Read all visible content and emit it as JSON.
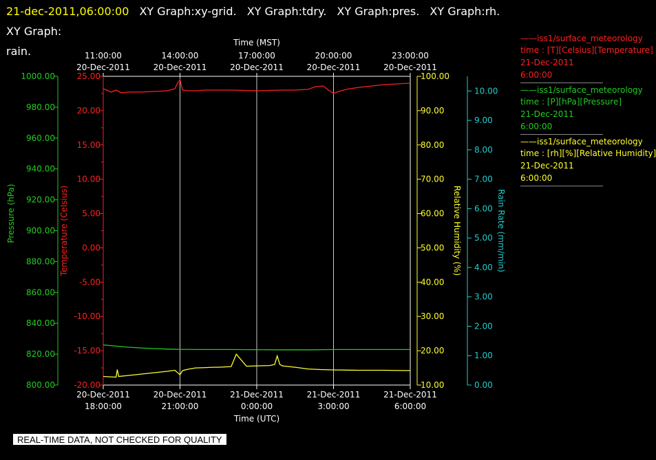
{
  "header": {
    "timestamp": "21-dec-2011,06:00:00",
    "graph_titles": [
      "XY Graph:xy-grid.",
      "XY Graph:tdry.",
      "XY Graph:pres.",
      "XY Graph:rh.",
      "XY Graph:",
      "rain."
    ]
  },
  "footer": {
    "text": "REAL-TIME DATA, NOT CHECKED FOR QUALITY"
  },
  "colors": {
    "background": "#000000",
    "grid": "#cccccc",
    "temperature": "#ff2020",
    "pressure": "#22cc22",
    "humidity": "#ffff30",
    "rain": "#22cccc"
  },
  "legend": [
    {
      "color": "#ff2020",
      "lines": [
        "——iss1/surface_meteorology",
        "time : [T][Celsius][Temperature]",
        "21-Dec-2011",
        "6:00:00"
      ]
    },
    {
      "color": "#22cc22",
      "lines": [
        "——iss1/surface_meteorology",
        "time : [P][hPa][Pressure]",
        "21-Dec-2011",
        "6:00:00"
      ]
    },
    {
      "color": "#ffff30",
      "lines": [
        "——iss1/surface_meteorology",
        "time : [rh][%][Relative Humidity]",
        "21-Dec-2011",
        "6:00:00"
      ]
    }
  ],
  "chart_data": {
    "type": "line",
    "x_range_hours_utc": [
      0,
      12
    ],
    "x_axis_bottom": {
      "label": "Time (UTC)",
      "ticks": [
        {
          "pos": 0,
          "date": "20-Dec-2011",
          "time": "18:00:00"
        },
        {
          "pos": 3,
          "date": "20-Dec-2011",
          "time": "21:00:00"
        },
        {
          "pos": 6,
          "date": "21-Dec-2011",
          "time": "0:00:00"
        },
        {
          "pos": 9,
          "date": "21-Dec-2011",
          "time": "3:00:00"
        },
        {
          "pos": 12,
          "date": "21-Dec-2011",
          "time": "6:00:00"
        }
      ]
    },
    "x_axis_top": {
      "label": "Time (MST)",
      "ticks": [
        {
          "pos": 0,
          "time": "11:00:00",
          "date": "20-Dec-2011"
        },
        {
          "pos": 3,
          "time": "14:00:00",
          "date": "20-Dec-2011"
        },
        {
          "pos": 6,
          "time": "17:00:00",
          "date": "20-Dec-2011"
        },
        {
          "pos": 9,
          "time": "20:00:00",
          "date": "20-Dec-2011"
        },
        {
          "pos": 12,
          "time": "23:00:00",
          "date": "20-Dec-2011"
        }
      ]
    },
    "grid": {
      "vertical": true,
      "horizontal": false
    },
    "y_axes": [
      {
        "id": "pressure",
        "label": "Pressure (hPa)",
        "range": [
          800,
          1000
        ],
        "ticks": [
          800,
          820,
          840,
          860,
          880,
          900,
          920,
          940,
          960,
          980,
          1000
        ],
        "color": "#22cc22"
      },
      {
        "id": "temperature",
        "label": "Temperature (Celsius)",
        "range": [
          -20,
          25
        ],
        "ticks": [
          -20,
          -15,
          -10,
          -5,
          0,
          5,
          10,
          15,
          20,
          25
        ],
        "color": "#ff2020"
      },
      {
        "id": "humidity",
        "label": "Relative Humidity (%)",
        "range": [
          10,
          100
        ],
        "ticks": [
          10,
          20,
          30,
          40,
          50,
          60,
          70,
          80,
          90,
          100
        ],
        "color": "#ffff30"
      },
      {
        "id": "rain",
        "label": "Rain Rate (mm/min)",
        "range": [
          0,
          10.5
        ],
        "ticks": [
          0,
          1,
          2,
          3,
          4,
          5,
          6,
          7,
          8,
          9,
          10
        ],
        "color": "#22cccc"
      }
    ],
    "series": [
      {
        "axis": "temperature",
        "color": "#ff2020",
        "x": [
          0,
          0.3,
          0.5,
          0.7,
          1.0,
          1.5,
          2.0,
          2.5,
          2.8,
          2.9,
          3.0,
          3.1,
          3.3,
          3.6,
          4.0,
          5.0,
          6.0,
          7.0,
          7.5,
          8.0,
          8.3,
          8.6,
          8.8,
          9.0,
          9.2,
          9.5,
          10.0,
          10.5,
          11.0,
          11.5,
          12.0
        ],
        "y": [
          23.2,
          22.7,
          23.0,
          22.6,
          22.7,
          22.7,
          22.8,
          22.9,
          23.2,
          24.0,
          24.5,
          23.0,
          22.9,
          22.9,
          23.0,
          23.0,
          22.9,
          23.0,
          23.0,
          23.1,
          23.5,
          23.6,
          23.0,
          22.5,
          22.8,
          23.1,
          23.4,
          23.6,
          23.8,
          23.9,
          24.0
        ]
      },
      {
        "axis": "pressure",
        "color": "#22cc22",
        "x": [
          0,
          0.5,
          1.0,
          1.5,
          2.0,
          2.5,
          3.0,
          4.0,
          5.0,
          6.0,
          7.0,
          8.0,
          9.0,
          10.0,
          11.0,
          12.0
        ],
        "y": [
          826,
          825.2,
          824.5,
          824.0,
          823.6,
          823.3,
          823.1,
          823.0,
          823.0,
          822.9,
          822.8,
          822.8,
          823.0,
          823.0,
          823.0,
          823.0
        ]
      },
      {
        "axis": "humidity",
        "color": "#ffff30",
        "x": [
          0,
          0.5,
          0.55,
          0.6,
          1.0,
          1.5,
          2.0,
          2.5,
          2.8,
          3.0,
          3.1,
          3.3,
          3.6,
          4.0,
          4.3,
          4.5,
          5.0,
          5.2,
          5.6,
          6.0,
          6.5,
          6.7,
          6.8,
          6.9,
          7.0,
          7.5,
          8.0,
          8.5,
          9.0,
          10.0,
          11.0,
          12.0
        ],
        "y": [
          12.5,
          12.3,
          14.5,
          12.5,
          12.8,
          13.2,
          13.6,
          14.0,
          14.3,
          13.0,
          14.2,
          14.6,
          15.0,
          15.1,
          15.2,
          15.2,
          15.4,
          19.0,
          15.5,
          15.6,
          15.7,
          16.0,
          18.5,
          16.0,
          15.6,
          15.2,
          14.7,
          14.5,
          14.4,
          14.3,
          14.3,
          14.2
        ]
      }
    ]
  }
}
